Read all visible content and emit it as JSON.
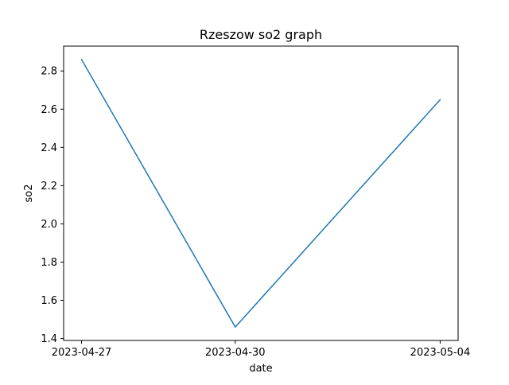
{
  "chart_data": {
    "type": "line",
    "title": "Rzeszow so2 graph",
    "xlabel": "date",
    "ylabel": "so2",
    "x": [
      "2023-04-27",
      "2023-04-30",
      "2023-05-04"
    ],
    "x_tick_labels": [
      "2023-04-27",
      "2023-04-30",
      "2023-05-04"
    ],
    "series": [
      {
        "values": [
          2.86,
          1.46,
          2.65
        ],
        "color": "#1f77b4"
      }
    ],
    "y_ticks": [
      1.4,
      1.6,
      1.8,
      2.0,
      2.2,
      2.4,
      2.6,
      2.8
    ],
    "y_tick_labels": [
      "1.4",
      "1.6",
      "1.8",
      "2.0",
      "2.2",
      "2.4",
      "2.6",
      "2.8"
    ],
    "ylim": [
      1.39,
      2.93
    ],
    "grid": false,
    "legend": false
  }
}
